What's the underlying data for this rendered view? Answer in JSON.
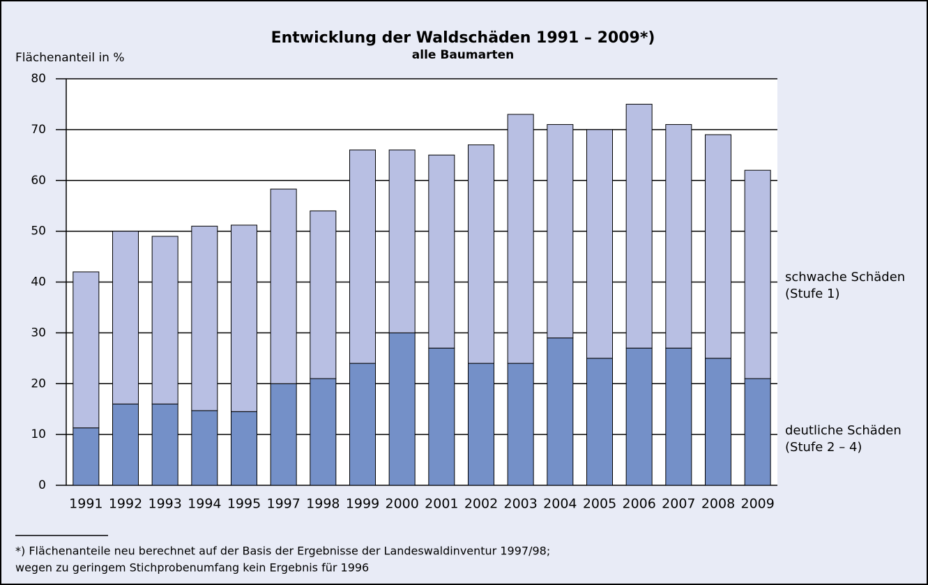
{
  "chart_data": {
    "type": "stacked_bar",
    "title": "Entwicklung der Waldschäden 1991 – 2009*)",
    "subtitle": "alle Baumarten",
    "y_label": "Flächenanteil in %",
    "categories": [
      "1991",
      "1992",
      "1993",
      "1994",
      "1995",
      "1997",
      "1998",
      "1999",
      "2000",
      "2001",
      "2002",
      "2003",
      "2004",
      "2005",
      "2006",
      "2007",
      "2008",
      "2009"
    ],
    "series": [
      {
        "name": "deutliche Schäden (Stufe 2 – 4)",
        "color": "#7490c8",
        "values": [
          11.3,
          16,
          16,
          14.7,
          14.5,
          20,
          21,
          24,
          30,
          27,
          24,
          24,
          29,
          25,
          27,
          27,
          25,
          21
        ]
      },
      {
        "name": "schwache Schäden (Stufe 1)",
        "color": "#b8bfe3",
        "values": [
          30.7,
          34,
          33,
          36.3,
          36.7,
          38.3,
          33,
          42,
          36,
          38,
          43,
          49,
          42,
          45,
          48,
          44,
          44,
          41
        ]
      }
    ],
    "ylim": [
      0,
      80
    ],
    "yticks": [
      0,
      10,
      20,
      30,
      40,
      50,
      60,
      70,
      80
    ],
    "grid": true,
    "footnote": [
      "*) Flächenanteile neu berechnet auf der Basis der Ergebnisse der Landeswaldinventur 1997/98;",
      "wegen zu geringem Stichprobenumfang kein Ergebnis für 1996"
    ]
  }
}
